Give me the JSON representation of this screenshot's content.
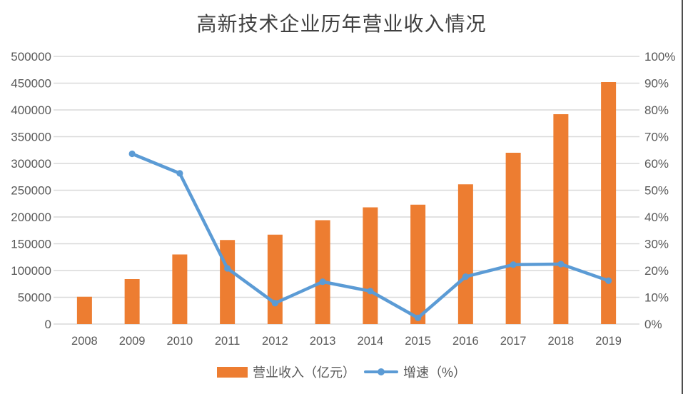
{
  "chart_data": {
    "type": "combo-bar-line",
    "title": "高新技术企业历年营业收入情况",
    "categories": [
      "2008",
      "2009",
      "2010",
      "2011",
      "2012",
      "2013",
      "2014",
      "2015",
      "2016",
      "2017",
      "2018",
      "2019"
    ],
    "series": [
      {
        "name": "营业收入（亿元）",
        "type": "bar",
        "axis": "left",
        "color": "#ED7D31",
        "values": [
          51000,
          84000,
          130000,
          157000,
          167000,
          194000,
          218000,
          223000,
          261000,
          320000,
          392000,
          452000
        ]
      },
      {
        "name": "增速（%）",
        "type": "line",
        "axis": "right",
        "color": "#5B9BD5",
        "values": [
          null,
          63.6,
          56.3,
          20.8,
          7.8,
          15.8,
          12.3,
          2.3,
          17.7,
          22.2,
          22.4,
          16.2
        ]
      }
    ],
    "left_axis": {
      "min": 0,
      "max": 500000,
      "step": 50000,
      "tick_labels": [
        "0",
        "50000",
        "100000",
        "150000",
        "200000",
        "250000",
        "300000",
        "350000",
        "400000",
        "450000",
        "500000"
      ]
    },
    "right_axis": {
      "min": 0,
      "max": 100,
      "step": 10,
      "tick_labels": [
        "0%",
        "10%",
        "20%",
        "30%",
        "40%",
        "50%",
        "60%",
        "70%",
        "80%",
        "90%",
        "100%"
      ]
    },
    "grid": "horizontal",
    "legend_position": "bottom",
    "colors": {
      "grid": "#D9D9D9",
      "axis_text": "#595959",
      "title_text": "#404040",
      "right_border": "#4D4D4D"
    }
  }
}
